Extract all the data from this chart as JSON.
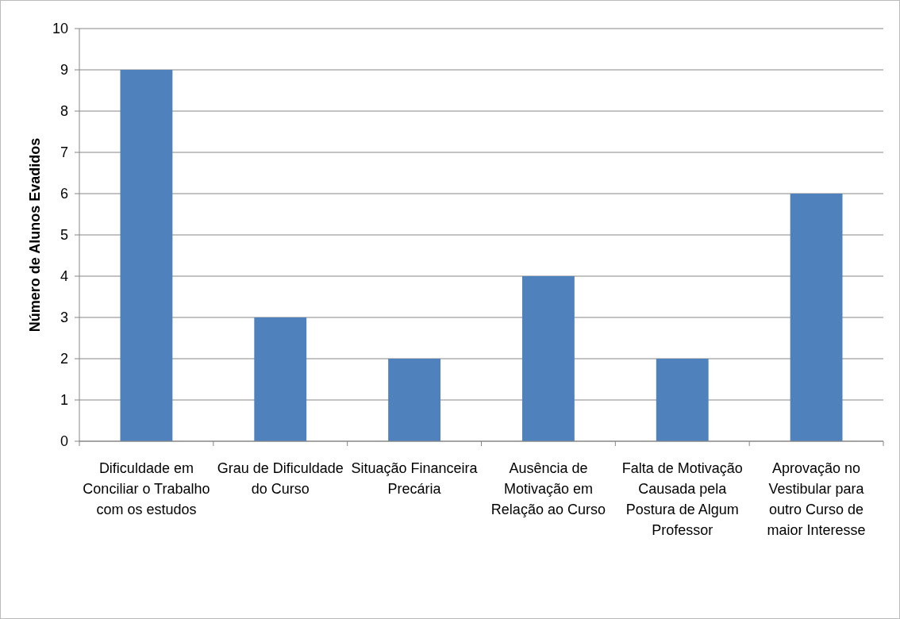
{
  "chart_data": {
    "type": "bar",
    "ylabel": "Número de Alunos Evadidos",
    "categories": [
      "Dificuldade em Conciliar o Trabalho com os estudos",
      "Grau de Dificuldade do Curso",
      "Situação Financeira Precária",
      "Ausência de Motivação em Relação ao Curso",
      "Falta de Motivação Causada pela Postura de Algum Professor",
      "Aprovação no Vestibular para outro Curso de maior Interesse"
    ],
    "values": [
      9,
      3,
      2,
      4,
      2,
      6
    ],
    "color": "#4f81bd",
    "ylim": [
      0,
      10
    ],
    "yticks": [
      0,
      1,
      2,
      3,
      4,
      5,
      6,
      7,
      8,
      9,
      10
    ],
    "grid": "y"
  }
}
